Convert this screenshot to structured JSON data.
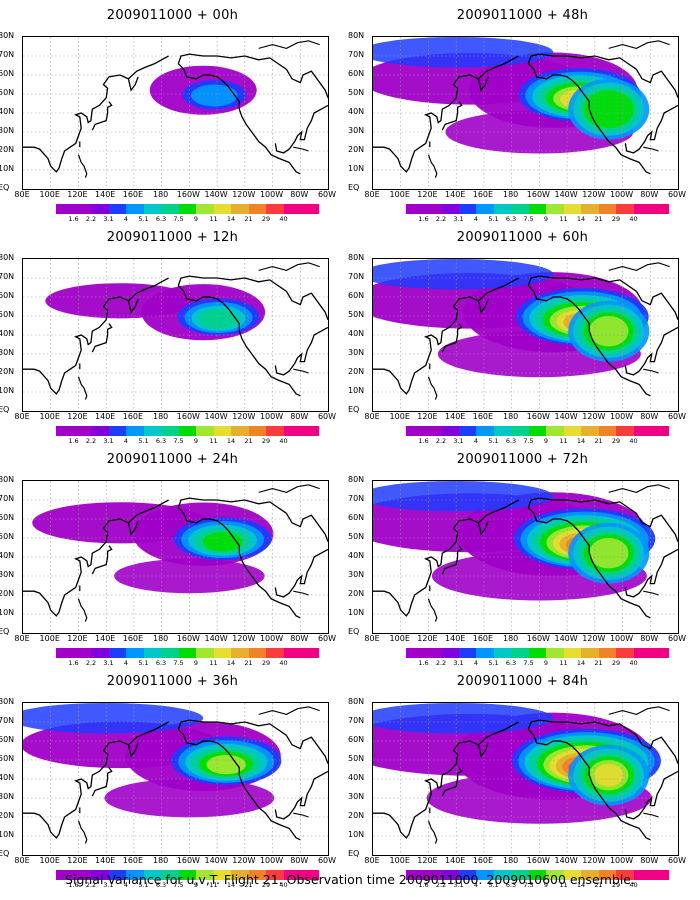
{
  "panels": [
    {
      "title": "2009011000 + 00h",
      "intensity": 0.15
    },
    {
      "title": "2009011000 + 48h",
      "intensity": 0.7
    },
    {
      "title": "2009011000 + 12h",
      "intensity": 0.3
    },
    {
      "title": "2009011000 + 60h",
      "intensity": 0.8
    },
    {
      "title": "2009011000 + 24h",
      "intensity": 0.45
    },
    {
      "title": "2009011000 + 72h",
      "intensity": 0.88
    },
    {
      "title": "2009011000 + 36h",
      "intensity": 0.58
    },
    {
      "title": "2009011000 + 84h",
      "intensity": 0.95
    }
  ],
  "axes": {
    "x_ticks": [
      "80E",
      "100E",
      "120E",
      "140E",
      "160E",
      "180",
      "160W",
      "140W",
      "120W",
      "100W",
      "80W",
      "60W"
    ],
    "y_ticks": [
      "80N",
      "70N",
      "60N",
      "50N",
      "40N",
      "30N",
      "20N",
      "10N",
      "EQ"
    ]
  },
  "colorbar": {
    "labels": [
      "1.6",
      "2.2",
      "3.1",
      "4",
      "5.1",
      "6.3",
      "7.5",
      "9",
      "11",
      "14",
      "21",
      "29",
      "40"
    ],
    "colors": [
      "#a000c8",
      "#8200dc",
      "#1e3cff",
      "#0096ff",
      "#00c8c8",
      "#00d28c",
      "#00dc00",
      "#a0e632",
      "#e6dc32",
      "#e6af2d",
      "#f08228",
      "#fa3c3c",
      "#f00082"
    ]
  },
  "caption": "Signal Variance for u,v,T. Flight 21. Observation time 2009011000. 2009010600 ensemble."
}
